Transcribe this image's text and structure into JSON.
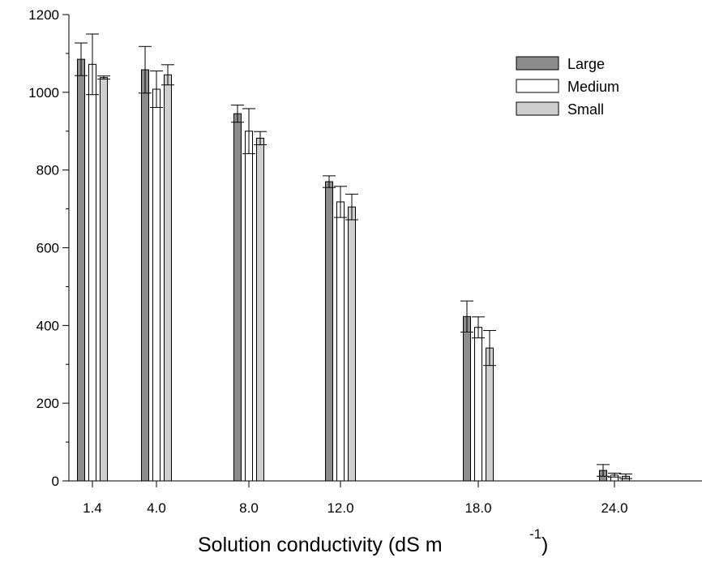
{
  "chart_data": {
    "type": "bar",
    "title": "",
    "xlabel": "Solution conductivity (dS m",
    "xlabel_superscript": "-1",
    "xlabel_suffix": ")",
    "ylabel": "",
    "ylim": [
      0,
      1200
    ],
    "yticks": [
      "0",
      "200",
      "400",
      "600",
      "800",
      "1000",
      "1200"
    ],
    "x": [
      1.4,
      4.0,
      8.0,
      12.0,
      18.0,
      24.0
    ],
    "categories": [
      "1.4",
      "4.0",
      "8.0",
      "12.0",
      "18.0",
      "24.0"
    ],
    "series": [
      {
        "name": "Large",
        "values": [
          1085,
          1058,
          945,
          770,
          423,
          27
        ],
        "errors": [
          42,
          60,
          22,
          15,
          40,
          15
        ]
      },
      {
        "name": "Medium",
        "values": [
          1072,
          1008,
          900,
          718,
          395,
          15
        ],
        "errors": [
          78,
          47,
          58,
          40,
          27,
          5
        ]
      },
      {
        "name": "Small",
        "values": [
          1038,
          1045,
          882,
          705,
          342,
          12
        ],
        "errors": [
          4,
          26,
          17,
          33,
          45,
          6
        ]
      }
    ],
    "colors": {
      "Large": "#8c8c8c",
      "Medium": "#ffffff",
      "Small": "#cfcfcf"
    },
    "legend_position": "top-right",
    "grid": false,
    "error_bars": true
  }
}
